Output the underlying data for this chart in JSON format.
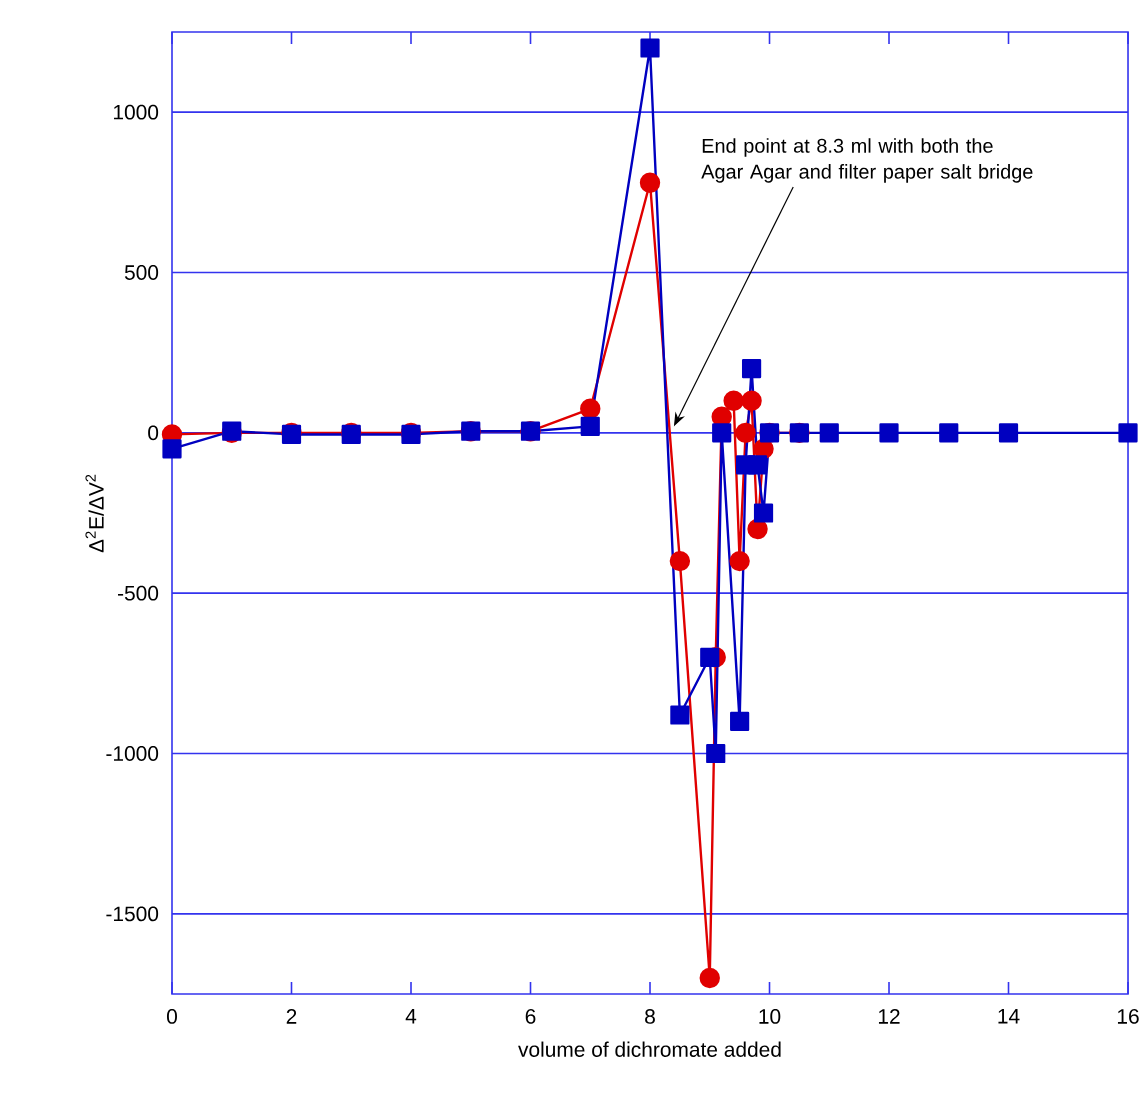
{
  "chart_data": {
    "type": "line",
    "xlabel": "volume of dichromate added",
    "ylabel": "Δ$^{2}$E/ΔV$^{2}$",
    "xlim": [
      0,
      16
    ],
    "xticks": [
      0,
      2,
      4,
      6,
      8,
      10,
      12,
      14,
      16
    ],
    "ylim": [
      -1750,
      1250
    ],
    "yticks": [
      -1500,
      -1000,
      -500,
      0,
      500,
      1000
    ],
    "grid": "y",
    "line_style": "solid",
    "annotations": [
      {
        "text": "End point at 8.3 ml with both the Agar Agar and filter paper salt bridge",
        "x": 8.4,
        "y": 0
      }
    ],
    "series": [
      {
        "color": "#e00000",
        "marker": "circle",
        "x": [
          0,
          1,
          2,
          3,
          4,
          5,
          6,
          7,
          8,
          8.5,
          9,
          9.1,
          9.2,
          9.4,
          9.5,
          9.6,
          9.7,
          9.8,
          9.9,
          10,
          10.5
        ],
        "values": [
          -5,
          0,
          0,
          0,
          0,
          5,
          5,
          75,
          780,
          -400,
          -1700,
          -700,
          50,
          100,
          -400,
          0,
          100,
          -300,
          -50,
          0,
          0
        ]
      },
      {
        "color": "#0000c0",
        "marker": "square",
        "x": [
          0,
          1,
          2,
          3,
          4,
          5,
          6,
          7,
          8,
          8.5,
          9,
          9.1,
          9.2,
          9.5,
          9.6,
          9.7,
          9.8,
          9.9,
          10,
          10.5,
          11,
          12,
          13,
          14,
          16
        ],
        "values": [
          -50,
          5,
          -5,
          -5,
          -5,
          5,
          5,
          20,
          1200,
          -880,
          -700,
          -1000,
          0,
          -900,
          -100,
          200,
          -100,
          -250,
          0,
          0,
          0,
          0,
          0,
          0,
          0
        ]
      }
    ]
  }
}
